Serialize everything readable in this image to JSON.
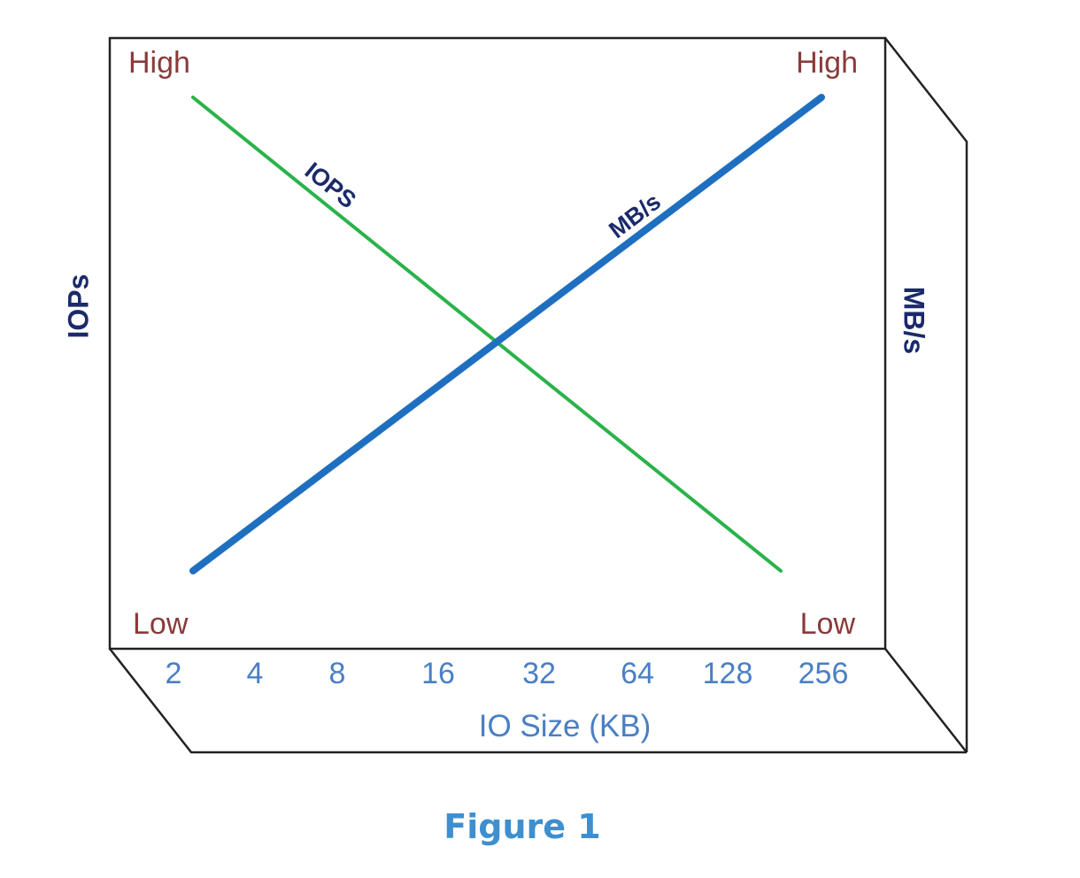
{
  "chart_data": {
    "type": "line",
    "style": "3d-box",
    "x": {
      "label": "IO Size (KB)",
      "categories": [
        "2",
        "4",
        "8",
        "16",
        "32",
        "64",
        "128",
        "256"
      ]
    },
    "left_axis": {
      "label": "IOPs",
      "high": "High",
      "low": "Low"
    },
    "right_axis": {
      "label": "MB/s",
      "high": "High",
      "low": "Low"
    },
    "series": [
      {
        "name": "IOPS",
        "axis": "left",
        "trend": "decreasing",
        "from": "High",
        "to": "Low",
        "color": "#2ab34a"
      },
      {
        "name": "MB/s",
        "axis": "right",
        "trend": "increasing",
        "from": "Low",
        "to": "High",
        "color": "#1f6fc0"
      }
    ],
    "colors": {
      "level_labels": "#8a3a3a",
      "x_labels": "#4a7fc4",
      "axis_titles": "#1b2a6b",
      "frame": "#222222"
    }
  },
  "caption": "Figure 1"
}
